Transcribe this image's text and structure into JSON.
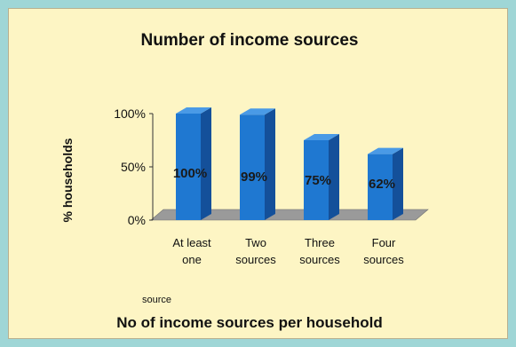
{
  "chart_data": {
    "type": "bar",
    "title": "Number of income sources",
    "ylabel": "% households",
    "xlabel": "No of income sources per household",
    "note": "source",
    "categories": [
      [
        "At least",
        "one"
      ],
      [
        "Two",
        "sources"
      ],
      [
        "Three",
        "sources"
      ],
      [
        "Four",
        "sources"
      ]
    ],
    "values": [
      100,
      99,
      75,
      62
    ],
    "data_labels": [
      "100%",
      "99%",
      "75%",
      "62%"
    ],
    "yticks": [
      "0%",
      "50%",
      "100%"
    ],
    "ytick_values": [
      0,
      50,
      100
    ],
    "ylim": [
      0,
      100
    ],
    "grid": false,
    "colors": {
      "bar_front": "#1f78d1",
      "bar_side": "#14509a",
      "bar_top": "#4a9ae6",
      "floor": "#9a9a9a",
      "background": "#fdf5c4"
    }
  }
}
